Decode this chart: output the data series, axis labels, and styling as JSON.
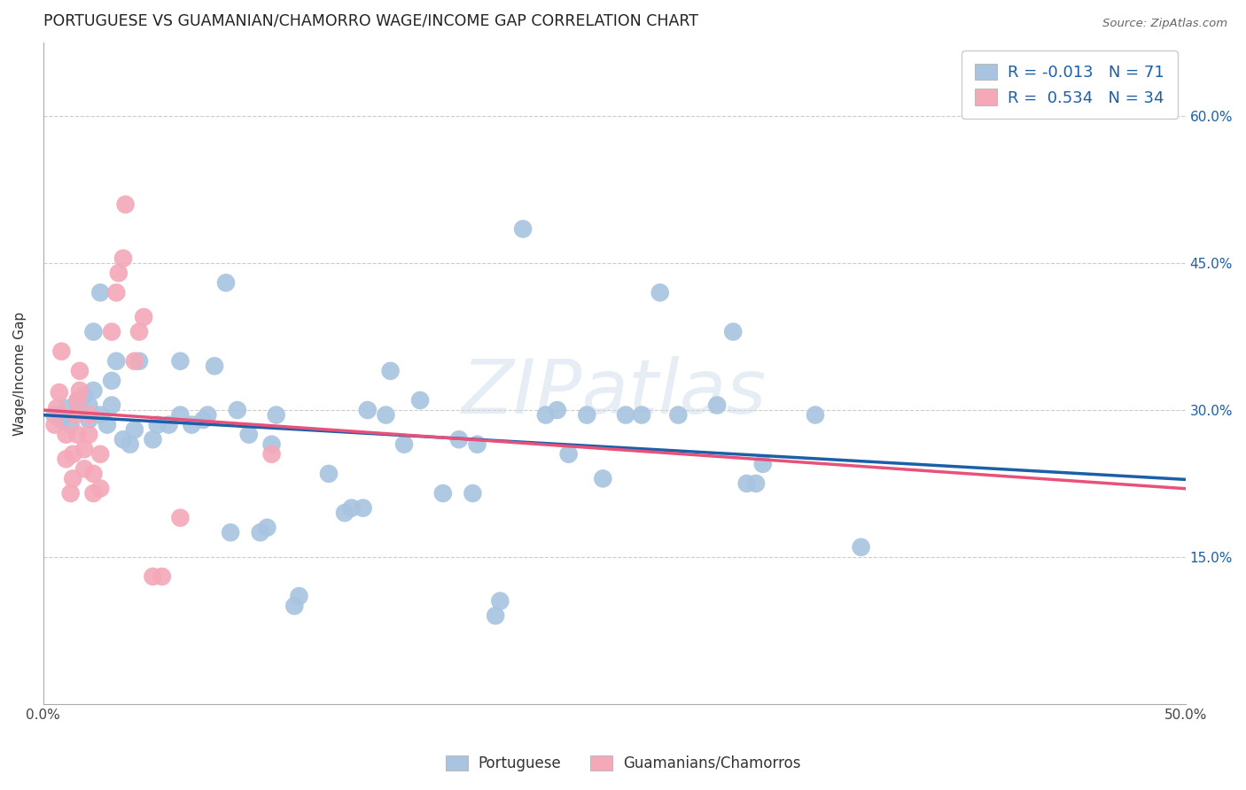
{
  "title": "PORTUGUESE VS GUAMANIAN/CHAMORRO WAGE/INCOME GAP CORRELATION CHART",
  "source": "Source: ZipAtlas.com",
  "ylabel": "Wage/Income Gap",
  "xlim": [
    0.0,
    0.5
  ],
  "ylim": [
    0.0,
    0.675
  ],
  "xtick_positions": [
    0.0,
    0.1,
    0.2,
    0.3,
    0.4,
    0.5
  ],
  "xtick_labels": [
    "0.0%",
    "",
    "",
    "",
    "",
    "50.0%"
  ],
  "ytick_positions": [
    0.15,
    0.3,
    0.45,
    0.6
  ],
  "ytick_labels": [
    "15.0%",
    "30.0%",
    "45.0%",
    "60.0%"
  ],
  "blue_r": "-0.013",
  "blue_n": "71",
  "pink_r": "0.534",
  "pink_n": "34",
  "legend_label_blue": "Portuguese",
  "legend_label_pink": "Guamanians/Chamorros",
  "blue_color": "#a8c4e0",
  "pink_color": "#f4a8b8",
  "blue_line_color": "#1a5fa8",
  "pink_line_color": "#e8517a",
  "watermark": "ZIPatlas",
  "blue_points": [
    [
      0.005,
      0.295
    ],
    [
      0.008,
      0.29
    ],
    [
      0.01,
      0.302
    ],
    [
      0.012,
      0.285
    ],
    [
      0.015,
      0.308
    ],
    [
      0.018,
      0.315
    ],
    [
      0.02,
      0.29
    ],
    [
      0.02,
      0.305
    ],
    [
      0.022,
      0.32
    ],
    [
      0.022,
      0.38
    ],
    [
      0.025,
      0.295
    ],
    [
      0.025,
      0.42
    ],
    [
      0.028,
      0.285
    ],
    [
      0.03,
      0.305
    ],
    [
      0.03,
      0.33
    ],
    [
      0.032,
      0.35
    ],
    [
      0.035,
      0.27
    ],
    [
      0.038,
      0.265
    ],
    [
      0.04,
      0.28
    ],
    [
      0.042,
      0.35
    ],
    [
      0.048,
      0.27
    ],
    [
      0.05,
      0.285
    ],
    [
      0.055,
      0.285
    ],
    [
      0.06,
      0.295
    ],
    [
      0.06,
      0.35
    ],
    [
      0.065,
      0.285
    ],
    [
      0.07,
      0.29
    ],
    [
      0.072,
      0.295
    ],
    [
      0.075,
      0.345
    ],
    [
      0.08,
      0.43
    ],
    [
      0.082,
      0.175
    ],
    [
      0.085,
      0.3
    ],
    [
      0.09,
      0.275
    ],
    [
      0.095,
      0.175
    ],
    [
      0.098,
      0.18
    ],
    [
      0.1,
      0.265
    ],
    [
      0.102,
      0.295
    ],
    [
      0.11,
      0.1
    ],
    [
      0.112,
      0.11
    ],
    [
      0.125,
      0.235
    ],
    [
      0.132,
      0.195
    ],
    [
      0.135,
      0.2
    ],
    [
      0.14,
      0.2
    ],
    [
      0.142,
      0.3
    ],
    [
      0.15,
      0.295
    ],
    [
      0.152,
      0.34
    ],
    [
      0.158,
      0.265
    ],
    [
      0.165,
      0.31
    ],
    [
      0.175,
      0.215
    ],
    [
      0.182,
      0.27
    ],
    [
      0.188,
      0.215
    ],
    [
      0.19,
      0.265
    ],
    [
      0.198,
      0.09
    ],
    [
      0.2,
      0.105
    ],
    [
      0.21,
      0.485
    ],
    [
      0.22,
      0.295
    ],
    [
      0.225,
      0.3
    ],
    [
      0.23,
      0.255
    ],
    [
      0.238,
      0.295
    ],
    [
      0.245,
      0.23
    ],
    [
      0.255,
      0.295
    ],
    [
      0.262,
      0.295
    ],
    [
      0.27,
      0.42
    ],
    [
      0.278,
      0.295
    ],
    [
      0.295,
      0.305
    ],
    [
      0.302,
      0.38
    ],
    [
      0.308,
      0.225
    ],
    [
      0.312,
      0.225
    ],
    [
      0.315,
      0.245
    ],
    [
      0.338,
      0.295
    ],
    [
      0.358,
      0.16
    ]
  ],
  "pink_points": [
    [
      0.005,
      0.285
    ],
    [
      0.006,
      0.302
    ],
    [
      0.007,
      0.318
    ],
    [
      0.008,
      0.36
    ],
    [
      0.01,
      0.25
    ],
    [
      0.01,
      0.275
    ],
    [
      0.012,
      0.215
    ],
    [
      0.013,
      0.23
    ],
    [
      0.013,
      0.255
    ],
    [
      0.014,
      0.295
    ],
    [
      0.015,
      0.275
    ],
    [
      0.015,
      0.31
    ],
    [
      0.016,
      0.32
    ],
    [
      0.016,
      0.34
    ],
    [
      0.018,
      0.24
    ],
    [
      0.018,
      0.26
    ],
    [
      0.02,
      0.275
    ],
    [
      0.02,
      0.295
    ],
    [
      0.022,
      0.215
    ],
    [
      0.022,
      0.235
    ],
    [
      0.025,
      0.22
    ],
    [
      0.025,
      0.255
    ],
    [
      0.03,
      0.38
    ],
    [
      0.032,
      0.42
    ],
    [
      0.033,
      0.44
    ],
    [
      0.035,
      0.455
    ],
    [
      0.036,
      0.51
    ],
    [
      0.04,
      0.35
    ],
    [
      0.042,
      0.38
    ],
    [
      0.044,
      0.395
    ],
    [
      0.048,
      0.13
    ],
    [
      0.052,
      0.13
    ],
    [
      0.06,
      0.19
    ],
    [
      0.1,
      0.255
    ]
  ]
}
